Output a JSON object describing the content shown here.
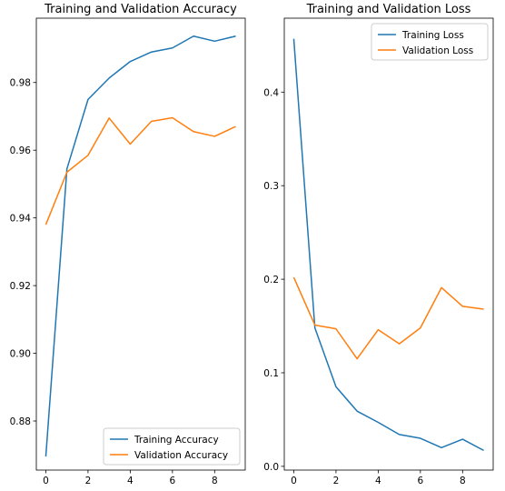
{
  "chart_data": [
    {
      "type": "line",
      "title": "Training and Validation Accuracy",
      "xlabel": "",
      "ylabel": "",
      "x": [
        0,
        1,
        2,
        3,
        4,
        5,
        6,
        7,
        8,
        9
      ],
      "xticks": [
        0,
        2,
        4,
        6,
        8
      ],
      "yticks": [
        0.88,
        0.9,
        0.92,
        0.94,
        0.96,
        0.98
      ],
      "xlim": [
        -0.45,
        9.45
      ],
      "ylim": [
        0.8655,
        0.999
      ],
      "grid": false,
      "legend": "lower-right",
      "series": [
        {
          "name": "Training Accuracy",
          "color": "#1f77b4",
          "values": [
            0.8695,
            0.9545,
            0.975,
            0.9813,
            0.9862,
            0.989,
            0.9902,
            0.9937,
            0.9922,
            0.9937
          ]
        },
        {
          "name": "Validation Accuracy",
          "color": "#ff7f0e",
          "values": [
            0.938,
            0.9535,
            0.9585,
            0.9695,
            0.9618,
            0.9685,
            0.9696,
            0.9655,
            0.9641,
            0.967
          ]
        }
      ]
    },
    {
      "type": "line",
      "title": "Training and Validation Loss",
      "xlabel": "",
      "ylabel": "",
      "x": [
        0,
        1,
        2,
        3,
        4,
        5,
        6,
        7,
        8,
        9
      ],
      "xticks": [
        0,
        2,
        4,
        6,
        8
      ],
      "yticks": [
        0.0,
        0.1,
        0.2,
        0.3,
        0.4
      ],
      "ylim": [
        -0.004,
        0.479
      ],
      "xlim": [
        -0.45,
        9.45
      ],
      "grid": false,
      "legend": "upper-right",
      "series": [
        {
          "name": "Training Loss",
          "color": "#1f77b4",
          "values": [
            0.457,
            0.148,
            0.085,
            0.059,
            0.047,
            0.034,
            0.03,
            0.02,
            0.029,
            0.017
          ]
        },
        {
          "name": "Validation Loss",
          "color": "#ff7f0e",
          "values": [
            0.202,
            0.151,
            0.147,
            0.115,
            0.146,
            0.131,
            0.148,
            0.191,
            0.171,
            0.168
          ]
        }
      ]
    }
  ]
}
